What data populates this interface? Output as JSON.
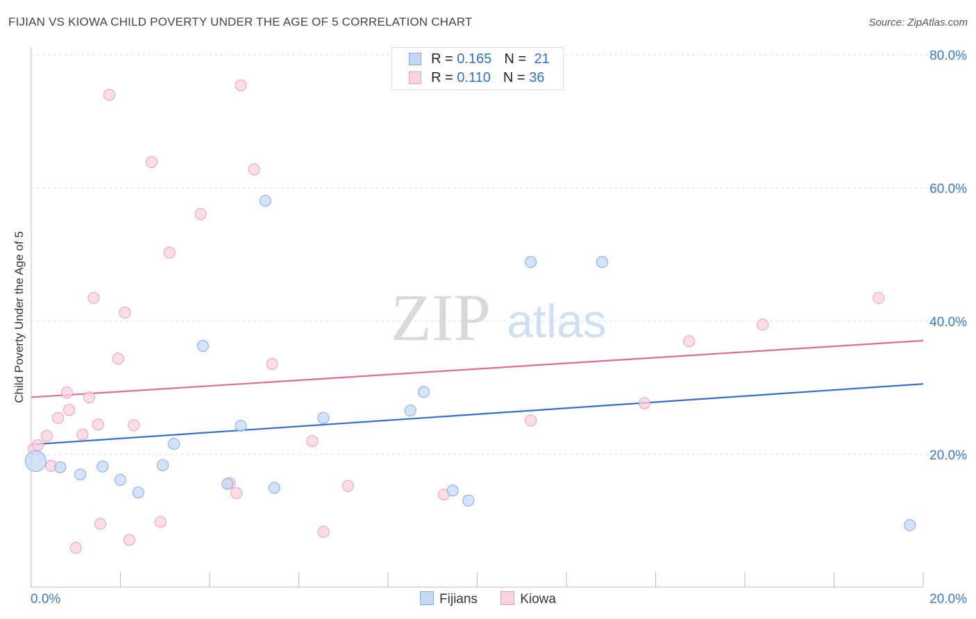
{
  "header": {
    "title": "FIJIAN VS KIOWA CHILD POVERTY UNDER THE AGE OF 5 CORRELATION CHART",
    "source": "Source: ZipAtlas.com"
  },
  "watermark": {
    "zip": "ZIP",
    "atlas": "atlas"
  },
  "legend_top": {
    "rows": [
      {
        "r_label": "R = ",
        "r_value": "0.165",
        "n_label": "N = ",
        "n_value": "21"
      },
      {
        "r_label": "R = ",
        "r_value": "0.110",
        "n_label": "N = ",
        "n_value": "36"
      }
    ]
  },
  "legend_bottom": {
    "items": [
      "Fijians",
      "Kiowa"
    ]
  },
  "colors": {
    "fijian_fill": "#c5d9f5",
    "fijian_stroke": "#7eaae6",
    "fijian_line": "#2f6fd0",
    "kiowa_fill": "#fbd3df",
    "kiowa_stroke": "#f19bb6",
    "kiowa_line": "#e06a94",
    "tick_label": "#3a78d0",
    "grid": "#dddddd"
  },
  "chart_data": {
    "type": "scatter",
    "title": "FIJIAN VS KIOWA CHILD POVERTY UNDER THE AGE OF 5 CORRELATION CHART",
    "xlabel": "",
    "ylabel": "Child Poverty Under the Age of 5",
    "xlim": [
      0,
      20
    ],
    "ylim": [
      0,
      80
    ],
    "x_tick_labels": [
      "0.0%",
      "20.0%"
    ],
    "y_ticks": [
      20,
      40,
      60,
      80
    ],
    "y_tick_labels": [
      "20.0%",
      "40.0%",
      "60.0%",
      "80.0%"
    ],
    "grid": "horizontal dashed",
    "legend_placement": "top-center",
    "series": [
      {
        "name": "Fijians",
        "points": [
          [
            0.1,
            19.0
          ],
          [
            0.65,
            18.1
          ],
          [
            1.1,
            17.0
          ],
          [
            1.6,
            18.2
          ],
          [
            2.0,
            16.2
          ],
          [
            2.4,
            14.3
          ],
          [
            2.95,
            18.4
          ],
          [
            3.2,
            21.6
          ],
          [
            3.85,
            36.3
          ],
          [
            4.4,
            15.6
          ],
          [
            4.7,
            24.3
          ],
          [
            5.25,
            58.1
          ],
          [
            5.45,
            15.0
          ],
          [
            6.55,
            25.5
          ],
          [
            8.5,
            26.6
          ],
          [
            8.8,
            29.4
          ],
          [
            9.45,
            14.6
          ],
          [
            9.8,
            13.1
          ],
          [
            11.2,
            48.9
          ],
          [
            12.8,
            48.9
          ],
          [
            19.7,
            9.4
          ]
        ],
        "trend": {
          "y_at_x0": 21.5,
          "y_at_x20": 30.6
        }
      },
      {
        "name": "Kiowa",
        "points": [
          [
            0.05,
            20.8
          ],
          [
            0.15,
            21.4
          ],
          [
            0.35,
            22.8
          ],
          [
            0.45,
            18.3
          ],
          [
            0.6,
            25.5
          ],
          [
            0.8,
            29.3
          ],
          [
            0.85,
            26.7
          ],
          [
            1.0,
            6.0
          ],
          [
            1.15,
            23.0
          ],
          [
            1.3,
            28.6
          ],
          [
            1.4,
            43.5
          ],
          [
            1.5,
            24.5
          ],
          [
            1.55,
            9.6
          ],
          [
            1.75,
            74.0
          ],
          [
            1.95,
            34.4
          ],
          [
            2.1,
            41.3
          ],
          [
            2.2,
            7.2
          ],
          [
            2.3,
            24.4
          ],
          [
            2.7,
            63.9
          ],
          [
            2.9,
            9.9
          ],
          [
            3.1,
            50.3
          ],
          [
            3.8,
            56.1
          ],
          [
            4.45,
            15.7
          ],
          [
            4.6,
            14.2
          ],
          [
            4.7,
            75.4
          ],
          [
            5.0,
            62.8
          ],
          [
            5.4,
            33.6
          ],
          [
            6.3,
            22.0
          ],
          [
            6.55,
            8.4
          ],
          [
            7.1,
            15.3
          ],
          [
            9.25,
            14.0
          ],
          [
            11.2,
            25.1
          ],
          [
            13.75,
            27.7
          ],
          [
            14.75,
            37.0
          ],
          [
            16.4,
            39.5
          ],
          [
            19.0,
            43.5
          ]
        ],
        "trend": {
          "y_at_x0": 28.6,
          "y_at_x20": 37.1
        }
      }
    ]
  }
}
